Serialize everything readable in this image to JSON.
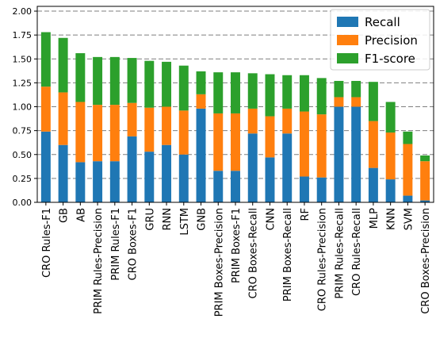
{
  "chart_data": {
    "type": "bar",
    "stacked": true,
    "title": "",
    "xlabel": "",
    "ylabel": "",
    "ylim": [
      0,
      2.05
    ],
    "yticks": [
      "0.00",
      "0.25",
      "0.50",
      "0.75",
      "1.00",
      "1.25",
      "1.50",
      "1.75",
      "2.00"
    ],
    "grid": "horizontal dashed",
    "legend_position": "top-right",
    "categories": [
      "CRO Rules-F1",
      "GB",
      "AB",
      "PRIM Rules-Precision",
      "PRIM Rules-F1",
      "CRO Boxes-F1",
      "GRU",
      "RNN",
      "LSTM",
      "GNB",
      "PRIM Boxes-Precision",
      "PRIM Boxes-F1",
      "CRO Boxes-Recall",
      "CNN",
      "PRIM Boxes-Recall",
      "RF",
      "CRO Rules-Precision",
      "PRIM Rules-Recall",
      "CRO Rules-Recall",
      "MLP",
      "KNN",
      "SVM",
      "CRO Boxes-Precision"
    ],
    "series": [
      {
        "name": "Recall",
        "color": "#1f77b4",
        "values": [
          0.74,
          0.6,
          0.42,
          0.43,
          0.43,
          0.69,
          0.53,
          0.6,
          0.5,
          0.98,
          0.33,
          0.33,
          0.72,
          0.47,
          0.72,
          0.27,
          0.26,
          1.0,
          1.0,
          0.36,
          0.24,
          0.07,
          0.02
        ]
      },
      {
        "name": "Precision",
        "color": "#ff7f0e",
        "values": [
          0.47,
          0.55,
          0.63,
          0.59,
          0.59,
          0.35,
          0.46,
          0.4,
          0.46,
          0.15,
          0.6,
          0.6,
          0.26,
          0.43,
          0.26,
          0.68,
          0.66,
          0.1,
          0.1,
          0.49,
          0.49,
          0.54,
          0.41
        ]
      },
      {
        "name": "F1-score",
        "color": "#2ca02c",
        "values": [
          0.57,
          0.57,
          0.51,
          0.5,
          0.5,
          0.47,
          0.49,
          0.47,
          0.47,
          0.24,
          0.43,
          0.43,
          0.37,
          0.44,
          0.35,
          0.38,
          0.38,
          0.17,
          0.17,
          0.41,
          0.32,
          0.13,
          0.06
        ]
      }
    ]
  }
}
